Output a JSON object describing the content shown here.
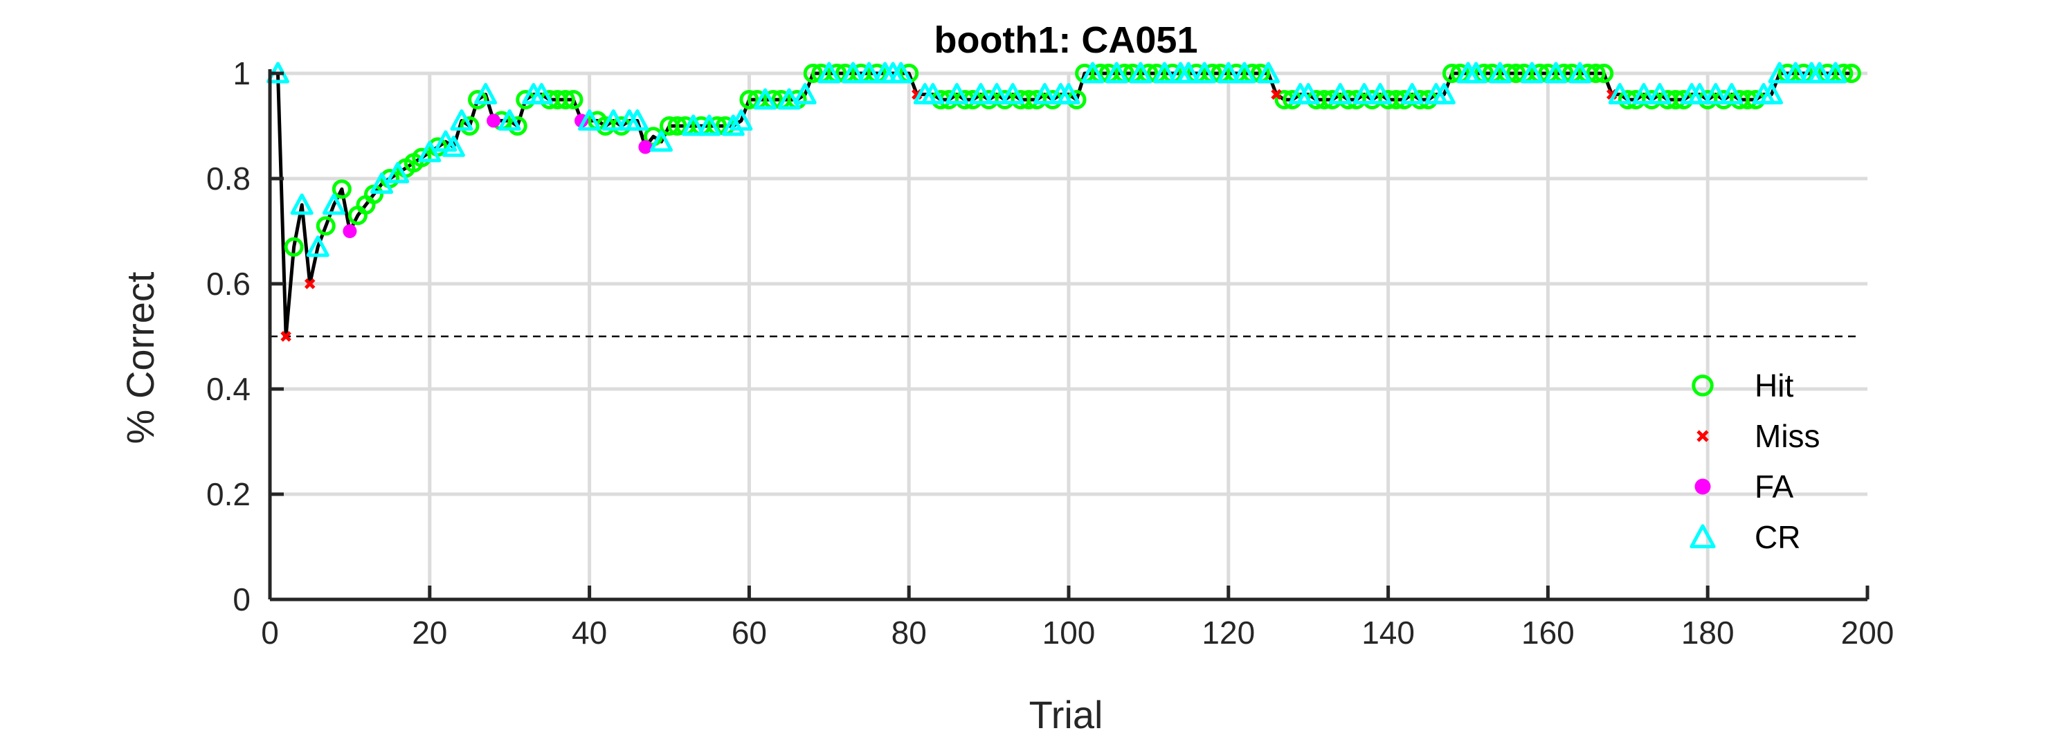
{
  "chart_data": {
    "type": "scatter",
    "title": "booth1: CA051",
    "xlabel": "Trial",
    "ylabel": "% Correct",
    "xlim": [
      0,
      200
    ],
    "ylim": [
      0,
      1
    ],
    "xticks": [
      0,
      20,
      40,
      60,
      80,
      100,
      120,
      140,
      160,
      180,
      200
    ],
    "yticks": [
      0,
      0.2,
      0.4,
      0.6,
      0.8,
      1
    ],
    "grid": true,
    "legend_position": "bottom-right",
    "chance_level": 0.5,
    "colors": {
      "hit": "#00ff00",
      "miss": "#ff0000",
      "fa": "#ff00ff",
      "cr": "#00ffff",
      "line": "#000000"
    },
    "series": [
      {
        "name": "Hit",
        "marker": "circle-open",
        "x": [
          3,
          7,
          9,
          11,
          12,
          13,
          15,
          17,
          18,
          19,
          21,
          25,
          26,
          29,
          31,
          32,
          35,
          36,
          37,
          38,
          41,
          42,
          44,
          48,
          50,
          51,
          52,
          54,
          56,
          57,
          60,
          61,
          63,
          64,
          66,
          68,
          69,
          71,
          72,
          74,
          76,
          80,
          84,
          85,
          87,
          88,
          90,
          92,
          94,
          95,
          96,
          98,
          101,
          102,
          104,
          105,
          107,
          108,
          110,
          111,
          113,
          116,
          118,
          119,
          121,
          123,
          124,
          127,
          128,
          131,
          132,
          133,
          135,
          136,
          138,
          140,
          141,
          142,
          144,
          145,
          148,
          149,
          152,
          153,
          155,
          156,
          157,
          159,
          160,
          162,
          163,
          165,
          166,
          167,
          170,
          171,
          173,
          175,
          176,
          177,
          180,
          182,
          184,
          185,
          186,
          190,
          192,
          195,
          197,
          198
        ],
        "y": [
          0.67,
          0.71,
          0.78,
          0.73,
          0.75,
          0.77,
          0.8,
          0.82,
          0.83,
          0.84,
          0.86,
          0.9,
          0.95,
          0.91,
          0.9,
          0.95,
          0.95,
          0.95,
          0.95,
          0.95,
          0.91,
          0.9,
          0.9,
          0.88,
          0.9,
          0.9,
          0.9,
          0.9,
          0.9,
          0.9,
          0.95,
          0.95,
          0.95,
          0.95,
          0.95,
          1,
          1,
          1,
          1,
          1,
          1,
          1,
          0.95,
          0.95,
          0.95,
          0.95,
          0.95,
          0.95,
          0.95,
          0.95,
          0.95,
          0.95,
          0.95,
          1,
          1,
          1,
          1,
          1,
          1,
          1,
          1,
          1,
          1,
          1,
          1,
          1,
          1,
          0.95,
          0.95,
          0.95,
          0.95,
          0.95,
          0.95,
          0.95,
          0.95,
          0.95,
          0.95,
          0.95,
          0.95,
          0.95,
          1,
          1,
          1,
          1,
          1,
          1,
          1,
          1,
          1,
          1,
          1,
          1,
          1,
          1,
          0.95,
          0.95,
          0.95,
          0.95,
          0.95,
          0.95,
          0.95,
          0.95,
          0.95,
          0.95,
          0.95,
          1,
          1,
          1,
          1,
          1
        ]
      },
      {
        "name": "Miss",
        "marker": "x",
        "x": [
          2,
          5,
          81,
          126,
          168
        ],
        "y": [
          0.5,
          0.6,
          0.96,
          0.96,
          0.96
        ]
      },
      {
        "name": "FA",
        "marker": "dot",
        "x": [
          10,
          28,
          39,
          47
        ],
        "y": [
          0.7,
          0.91,
          0.91,
          0.86
        ]
      },
      {
        "name": "CR",
        "marker": "triangle-open",
        "x": [
          1,
          4,
          6,
          8,
          14,
          16,
          20,
          22,
          23,
          24,
          27,
          30,
          33,
          34,
          40,
          43,
          45,
          46,
          49,
          53,
          55,
          58,
          59,
          62,
          65,
          67,
          70,
          73,
          75,
          77,
          78,
          79,
          82,
          83,
          86,
          89,
          91,
          93,
          97,
          99,
          100,
          103,
          106,
          109,
          112,
          114,
          115,
          117,
          120,
          122,
          125,
          129,
          130,
          134,
          137,
          139,
          143,
          146,
          147,
          150,
          151,
          154,
          158,
          161,
          164,
          169,
          172,
          174,
          178,
          179,
          181,
          183,
          187,
          188,
          189,
          191,
          193,
          194,
          196
        ],
        "y": [
          1,
          0.75,
          0.67,
          0.75,
          0.79,
          0.81,
          0.85,
          0.87,
          0.86,
          0.91,
          0.96,
          0.91,
          0.96,
          0.96,
          0.91,
          0.91,
          0.91,
          0.91,
          0.87,
          0.9,
          0.9,
          0.9,
          0.91,
          0.95,
          0.95,
          0.96,
          1,
          1,
          1,
          1,
          1,
          1,
          0.96,
          0.96,
          0.96,
          0.96,
          0.96,
          0.96,
          0.96,
          0.96,
          0.96,
          1,
          1,
          1,
          1,
          1,
          1,
          1,
          1,
          1,
          1,
          0.96,
          0.96,
          0.96,
          0.96,
          0.96,
          0.96,
          0.96,
          0.96,
          1,
          1,
          1,
          1,
          1,
          1,
          0.96,
          0.96,
          0.96,
          0.96,
          0.96,
          0.96,
          0.96,
          0.96,
          0.96,
          1,
          1,
          1,
          1,
          1
        ]
      }
    ]
  }
}
